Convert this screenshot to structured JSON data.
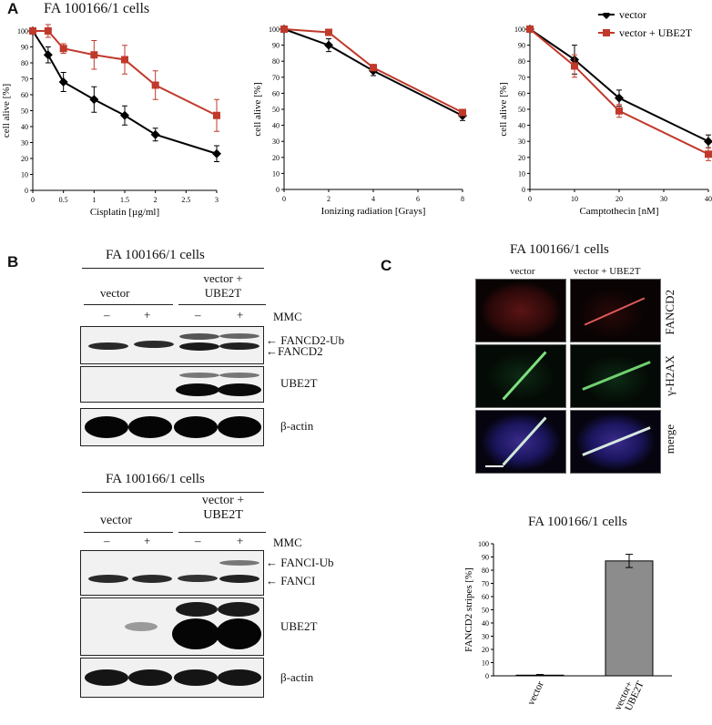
{
  "panel_a": {
    "letter": "A",
    "title": "FA 100166/1 cells",
    "legend": {
      "vector": "vector",
      "vector_ube2t": "vector + UBE2T"
    }
  },
  "panel_b": {
    "letter": "B",
    "top": {
      "title": "FA 100166/1 cells",
      "group1": "vector",
      "group2_line1": "vector +",
      "group2_line2": "UBE2T",
      "minus": "–",
      "plus": "+",
      "mmc": "MMC",
      "ub_label": "FANCD2-Ub",
      "base_label": "FANCD2",
      "ube2t": "UBE2T",
      "actin": "β-actin"
    },
    "bottom": {
      "title": "FA 100166/1 cells",
      "group1": "vector",
      "group2_line1": "vector +",
      "group2_line2": "UBE2T",
      "minus": "–",
      "plus": "+",
      "mmc": "MMC",
      "ub_label": "FANCI-Ub",
      "base_label": "FANCI",
      "ube2t": "UBE2T",
      "actin": "β-actin"
    }
  },
  "panel_c": {
    "letter": "C",
    "title": "FA 100166/1 cells",
    "col1": "vector",
    "col2": "vector + UBE2T",
    "row1": "FANCD2",
    "row2": "γ-H2AX",
    "row3": "merge",
    "bar_title": "FA 100166/1 cells"
  },
  "chart_data": [
    {
      "type": "line",
      "xlabel": "Cisplatin [µg/ml]",
      "ylabel": "cell alive [%]",
      "xlim": [
        0,
        3
      ],
      "ylim": [
        0,
        100
      ],
      "xticks": [
        0,
        0.5,
        1,
        1.5,
        2,
        2.5,
        3
      ],
      "yticks": [
        0,
        10,
        20,
        30,
        40,
        50,
        60,
        70,
        80,
        90,
        100
      ],
      "series": [
        {
          "name": "vector",
          "color": "#000000",
          "marker": "diamond",
          "x": [
            0,
            0.25,
            0.5,
            1,
            1.5,
            2,
            3
          ],
          "y": [
            100,
            85,
            68,
            57,
            47,
            35,
            23
          ],
          "err": [
            0,
            5,
            6,
            8,
            6,
            4,
            5
          ]
        },
        {
          "name": "vector + UBE2T",
          "color": "#c0392b",
          "marker": "square",
          "x": [
            0,
            0.25,
            0.5,
            1,
            1.5,
            2,
            3
          ],
          "y": [
            100,
            100,
            89,
            85,
            82,
            66,
            47
          ],
          "err": [
            0,
            4,
            3,
            9,
            9,
            9,
            10
          ]
        }
      ]
    },
    {
      "type": "line",
      "xlabel": "Ionizing radiation [Grays]",
      "ylabel": "cell alive [%]",
      "xlim": [
        0,
        8
      ],
      "ylim": [
        0,
        100
      ],
      "xticks": [
        0,
        2,
        4,
        6,
        8
      ],
      "yticks": [
        0,
        10,
        20,
        30,
        40,
        50,
        60,
        70,
        80,
        90,
        100
      ],
      "series": [
        {
          "name": "vector",
          "color": "#000000",
          "marker": "diamond",
          "x": [
            0,
            2,
            4,
            8
          ],
          "y": [
            100,
            90,
            74,
            46
          ],
          "err": [
            0,
            4,
            3,
            3
          ]
        },
        {
          "name": "vector + UBE2T",
          "color": "#c0392b",
          "marker": "square",
          "x": [
            0,
            2,
            4,
            8
          ],
          "y": [
            100,
            98,
            76,
            48
          ],
          "err": [
            0,
            2,
            2,
            2
          ]
        }
      ]
    },
    {
      "type": "line",
      "xlabel": "Camptothecin [nM]",
      "ylabel": "cell alive [%]",
      "xlim": [
        0,
        40
      ],
      "ylim": [
        0,
        100
      ],
      "xticks": [
        0,
        10,
        20,
        30,
        40
      ],
      "yticks": [
        0,
        10,
        20,
        30,
        40,
        50,
        60,
        70,
        80,
        90,
        100
      ],
      "series": [
        {
          "name": "vector",
          "color": "#000000",
          "marker": "diamond",
          "x": [
            0,
            10,
            20,
            40
          ],
          "y": [
            100,
            81,
            57,
            30
          ],
          "err": [
            0,
            9,
            5,
            4
          ]
        },
        {
          "name": "vector + UBE2T",
          "color": "#c0392b",
          "marker": "square",
          "x": [
            0,
            10,
            20,
            40
          ],
          "y": [
            100,
            77,
            49,
            22
          ],
          "err": [
            0,
            7,
            4,
            4
          ]
        }
      ]
    },
    {
      "type": "bar",
      "ylabel": "FANCD2 stripes [%]",
      "ylim": [
        0,
        100
      ],
      "yticks": [
        0,
        10,
        20,
        30,
        40,
        50,
        60,
        70,
        80,
        90,
        100
      ],
      "categories": [
        "vector",
        "vector+ UBE2T"
      ],
      "values": [
        0.5,
        87
      ],
      "err": [
        0.5,
        5
      ],
      "color": "#8c8c8c"
    }
  ]
}
